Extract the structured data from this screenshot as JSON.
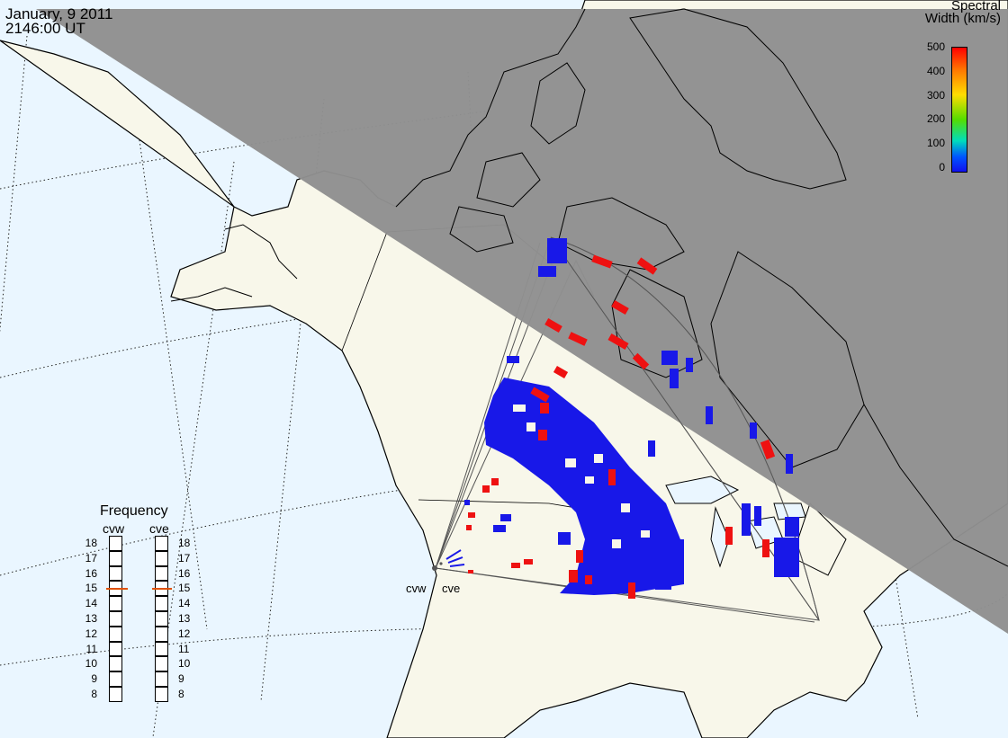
{
  "header": {
    "date": "January, 9 2011",
    "time": "2146:00 UT"
  },
  "colorbar": {
    "title_line1": "Spectral",
    "title_line2": "Width (km/s)",
    "ticks": [
      "500",
      "400",
      "300",
      "200",
      "100",
      "0"
    ],
    "range": [
      0,
      500
    ],
    "colors": [
      "#ff0000",
      "#ff8800",
      "#ffee00",
      "#33dd00",
      "#00ddcc",
      "#0044ff",
      "#1010ee"
    ]
  },
  "frequency_panel": {
    "title": "Frequency",
    "radars": [
      {
        "name": "cvw",
        "value": 15
      },
      {
        "name": "cve",
        "value": 15
      }
    ],
    "scale": [
      "18",
      "17",
      "16",
      "15",
      "14",
      "13",
      "12",
      "11",
      "10",
      "9",
      "8"
    ],
    "indicator_color": "#e05000"
  },
  "map": {
    "radar_sites": [
      {
        "name": "cvw"
      },
      {
        "name": "cve"
      }
    ],
    "colors": {
      "ocean": "#eaf6ff",
      "land": "#f8f7ea",
      "night": "#8f8f8f",
      "low_width": "#1818e8",
      "high_width": "#ee1111"
    }
  }
}
